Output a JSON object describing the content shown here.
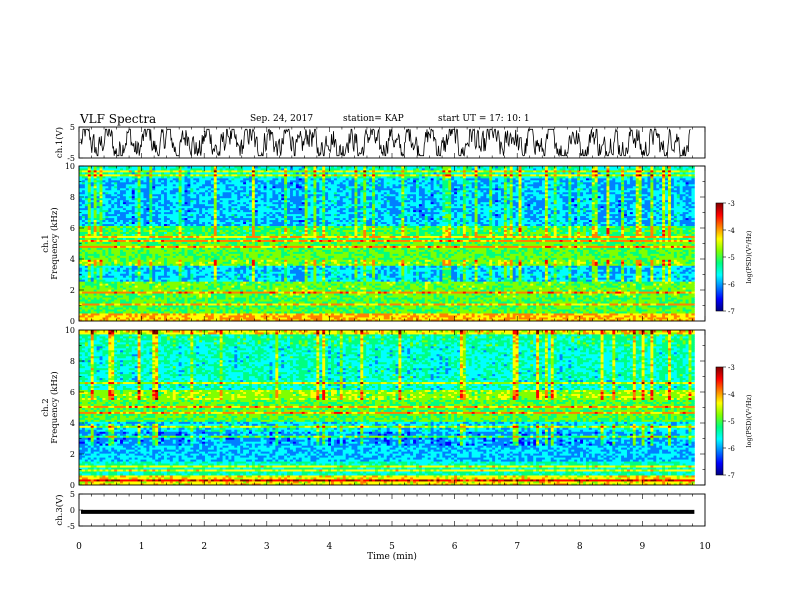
{
  "header": {
    "title": "VLF Spectra",
    "date": "Sep. 24, 2017",
    "station": "station= KAP",
    "start_ut": "start  UT =   17: 10: 1"
  },
  "colors": {
    "palette": [
      "#000080",
      "#0000ff",
      "#0080ff",
      "#00ffff",
      "#00ff80",
      "#80ff00",
      "#ffff00",
      "#ff8000",
      "#ff0000",
      "#800000"
    ],
    "trace": "#000000"
  },
  "chart_data": [
    {
      "type": "line",
      "ylabel": "ch.1(V)",
      "ylim": [
        -5,
        5
      ],
      "yticks": [
        "5",
        "-5"
      ],
      "xlim": [
        0,
        10
      ],
      "description_values": "voltage waveform oscillating roughly between -4 and +4 V over 0-10 min"
    },
    {
      "type": "heatmap",
      "ylabel": "ch.1\nFrequency (kHz)",
      "ylabel_lines": [
        "ch.1",
        "Frequency (kHz)"
      ],
      "ylim": [
        0,
        10
      ],
      "yticks": [
        "0",
        "2",
        "4",
        "6",
        "8",
        "10"
      ],
      "xlim": [
        0,
        10
      ],
      "colorbar": {
        "label": "log(PSD)(V²/Hz)",
        "range": [
          -7,
          -3
        ],
        "ticks": [
          "-3",
          "-4",
          "-5",
          "-6",
          "-7"
        ]
      }
    },
    {
      "type": "heatmap",
      "ylabel": "ch.2\nFrequency (kHz)",
      "ylabel_lines": [
        "ch.2",
        "Frequency (kHz)"
      ],
      "ylim": [
        0,
        10
      ],
      "yticks": [
        "0",
        "2",
        "4",
        "6",
        "8",
        "10"
      ],
      "xlim": [
        0,
        10
      ],
      "colorbar": {
        "label": "log(PSD)(V²/Hz)",
        "range": [
          -7,
          -3
        ],
        "ticks": [
          "-3",
          "-4",
          "-5",
          "-6",
          "-7"
        ]
      }
    },
    {
      "type": "line",
      "ylabel": "ch.3(V)",
      "ylim": [
        -5,
        5
      ],
      "yticks": [
        "5",
        "0",
        "-5"
      ],
      "xlim": [
        0,
        10
      ],
      "xlabel": "Time  (min)",
      "xticks": [
        "0",
        "1",
        "2",
        "3",
        "4",
        "5",
        "6",
        "7",
        "8",
        "9",
        "10"
      ]
    }
  ]
}
